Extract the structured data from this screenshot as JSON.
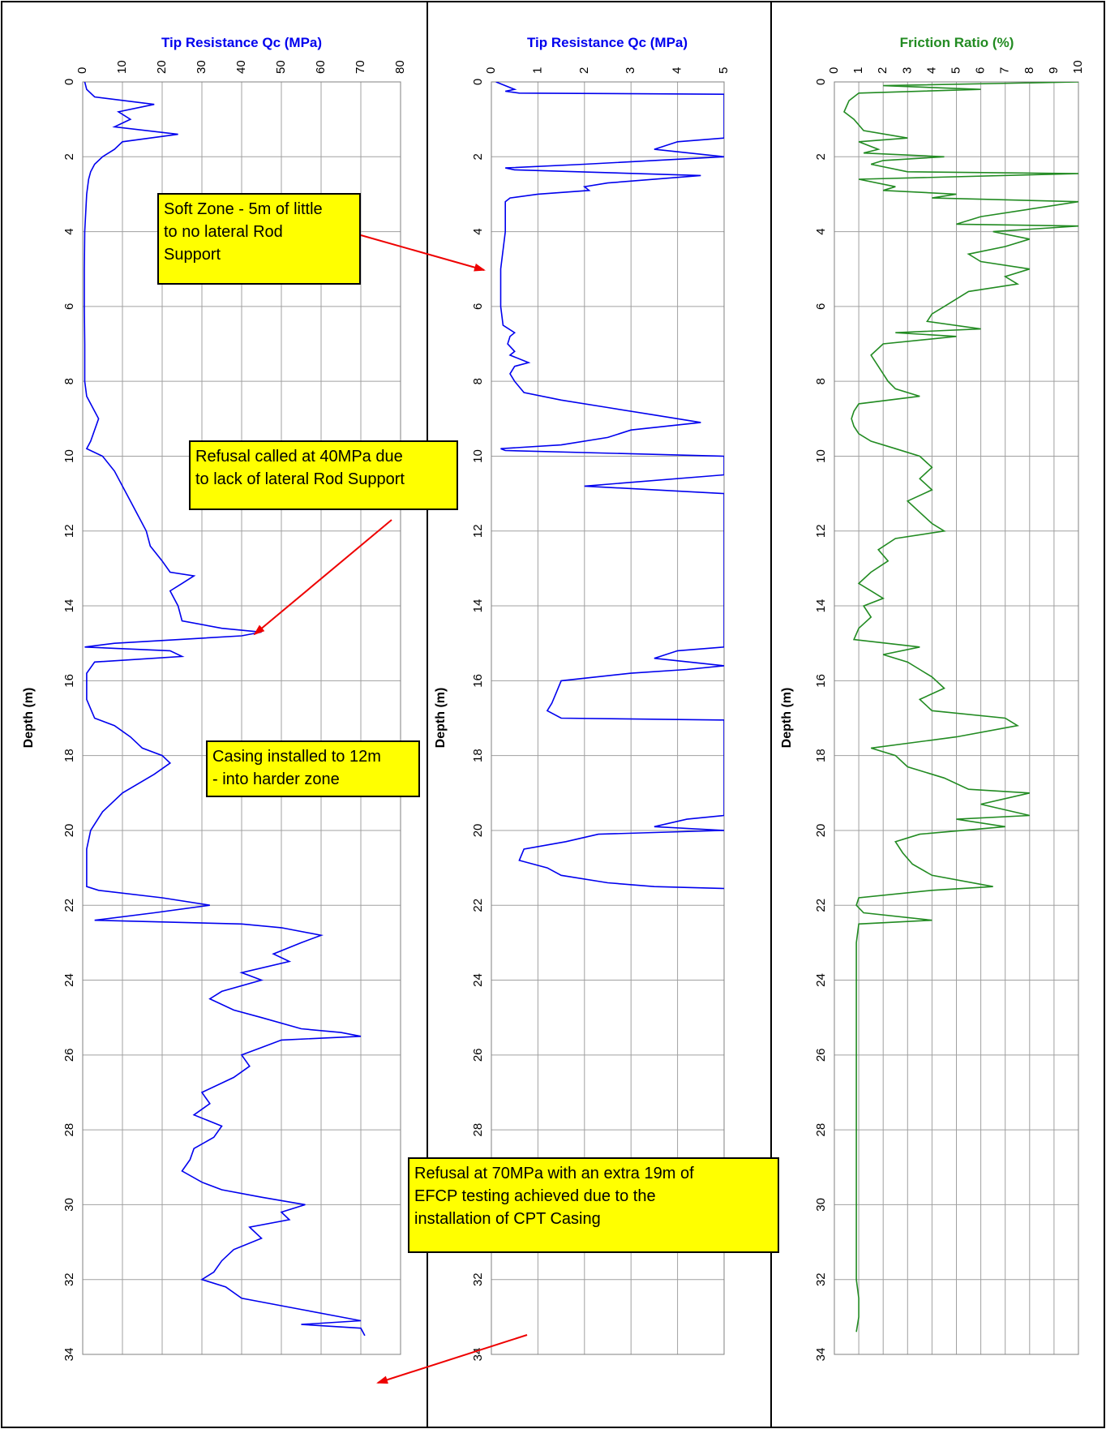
{
  "chart_data": [
    {
      "type": "line",
      "title": "Tip Resistance Qc (MPa)",
      "ylabel": "Depth (m)",
      "xlim": [
        0,
        80
      ],
      "ylim": [
        34,
        0
      ],
      "x_ticks": [
        0,
        10,
        20,
        30,
        40,
        50,
        60,
        70,
        80
      ],
      "y_ticks": [
        0,
        2,
        4,
        6,
        8,
        10,
        12,
        14,
        16,
        18,
        20,
        22,
        24,
        26,
        28,
        30,
        32,
        34
      ],
      "grid": true,
      "color": "#0000ee",
      "series": [
        {
          "depth": [
            0,
            0.2,
            0.4,
            0.6,
            0.8,
            1.0,
            1.2,
            1.4,
            1.6,
            1.8,
            2.0,
            2.2,
            2.4,
            2.6,
            3.0,
            4.0,
            5.0,
            6.0,
            7.0,
            8.0,
            8.4,
            9.0,
            9.6,
            9.8,
            10.0,
            10.4,
            10.8,
            11.2,
            11.6,
            12.0,
            12.4,
            12.8,
            13.1,
            13.2,
            13.4,
            13.6,
            14.0,
            14.4,
            14.6,
            14.7,
            14.8,
            15.0,
            15.1,
            15.2,
            15.35,
            15.5,
            15.8,
            16.5,
            17.0,
            17.2,
            17.5,
            17.8,
            18.0,
            18.2,
            18.5,
            19.0,
            19.5,
            20.0,
            20.5,
            21.0,
            21.5,
            21.6,
            21.8,
            22.0,
            22.2,
            22.4,
            22.5,
            22.6,
            22.8,
            23.0,
            23.3,
            23.5,
            23.8,
            24.0,
            24.3,
            24.5,
            24.8,
            25.0,
            25.3,
            25.4,
            25.5,
            25.6,
            25.8,
            26.0,
            26.3,
            26.6,
            27.0,
            27.3,
            27.6,
            27.9,
            28.2,
            28.5,
            28.8,
            29.1,
            29.4,
            29.6,
            29.8,
            30.0,
            30.2,
            30.4,
            30.6,
            30.9,
            31.2,
            31.5,
            31.8,
            32.0,
            32.2,
            32.5,
            32.8,
            33.0,
            33.1,
            33.2,
            33.3,
            33.5
          ],
          "qc": [
            0.5,
            1,
            3,
            18,
            9,
            12,
            8,
            24,
            10,
            8,
            5,
            3,
            2,
            1.5,
            1,
            0.5,
            0.4,
            0.4,
            0.5,
            0.5,
            1,
            4,
            2,
            1,
            5,
            8,
            10,
            12,
            14,
            16,
            17,
            20,
            22,
            28,
            25,
            22,
            24,
            25,
            35,
            45,
            40,
            8,
            0.5,
            22,
            25,
            3,
            1,
            1,
            3,
            8,
            12,
            15,
            20,
            22,
            18,
            10,
            5,
            2,
            1,
            1,
            1,
            4,
            20,
            32,
            18,
            3,
            40,
            50,
            60,
            55,
            48,
            52,
            40,
            45,
            35,
            32,
            38,
            45,
            55,
            65,
            70,
            50,
            45,
            40,
            42,
            38,
            30,
            32,
            28,
            35,
            33,
            28,
            27,
            25,
            30,
            35,
            45,
            56,
            50,
            52,
            42,
            45,
            38,
            35,
            33,
            30,
            36,
            40,
            55,
            65,
            70,
            55,
            70,
            71
          ]
        }
      ]
    },
    {
      "type": "line",
      "title": "Tip Resistance Qc (MPa)",
      "ylabel": "Depth (m)",
      "xlim": [
        0,
        5
      ],
      "ylim": [
        34,
        0
      ],
      "x_ticks": [
        0,
        1,
        2,
        3,
        4,
        5
      ],
      "y_ticks": [
        0,
        2,
        4,
        6,
        8,
        10,
        12,
        14,
        16,
        18,
        20,
        22,
        24,
        26,
        28,
        30,
        32,
        34
      ],
      "grid": true,
      "color": "#0000ee",
      "series": [
        {
          "depth": [
            0,
            0.1,
            0.2,
            0.25,
            0.3,
            0.33,
            0.35,
            1.5,
            1.6,
            1.8,
            2.0,
            2.2,
            2.3,
            2.35,
            2.5,
            2.7,
            2.8,
            2.9,
            3.0,
            3.1,
            3.2,
            4.0,
            5.0,
            6.0,
            6.5,
            6.7,
            6.8,
            7.0,
            7.2,
            7.3,
            7.5,
            7.6,
            7.8,
            8.0,
            8.3,
            8.5,
            8.7,
            8.9,
            9.1,
            9.3,
            9.5,
            9.7,
            9.8,
            9.85,
            10.0,
            10.05,
            10.5,
            10.8,
            11.0,
            11.4,
            15.1,
            15.2,
            15.4,
            15.6,
            15.7,
            15.8,
            16.0,
            16.3,
            16.6,
            16.8,
            17.0,
            17.05,
            17.2,
            19.6,
            19.7,
            19.9,
            20.0,
            20.1,
            20.3,
            20.5,
            20.8,
            21.0,
            21.2,
            21.4,
            21.5,
            21.55
          ],
          "qc": [
            0.1,
            0.3,
            0.5,
            0.3,
            0.6,
            5,
            5,
            5,
            4,
            3.5,
            5,
            2,
            0.3,
            0.5,
            4.5,
            2.5,
            2.0,
            2.1,
            1.0,
            0.4,
            0.3,
            0.3,
            0.2,
            0.2,
            0.25,
            0.5,
            0.4,
            0.35,
            0.5,
            0.4,
            0.8,
            0.5,
            0.4,
            0.5,
            0.7,
            1.5,
            2.5,
            3.5,
            4.5,
            3.0,
            2.5,
            1.5,
            0.2,
            0.3,
            5,
            5,
            5,
            2.0,
            5,
            5,
            5,
            4.0,
            3.5,
            5,
            4.2,
            3.0,
            1.5,
            1.4,
            1.3,
            1.2,
            1.5,
            5,
            5,
            5,
            4.2,
            3.5,
            5,
            2.3,
            1.6,
            0.7,
            0.6,
            1.2,
            1.5,
            2.5,
            3.5,
            5
          ]
        }
      ]
    },
    {
      "type": "line",
      "title": "Friction Ratio (%)",
      "ylabel": "Depth (m)",
      "xlim": [
        0,
        10
      ],
      "ylim": [
        34,
        0
      ],
      "x_ticks": [
        0,
        1,
        2,
        3,
        4,
        5,
        6,
        7,
        8,
        9,
        10
      ],
      "y_ticks": [
        0,
        2,
        4,
        6,
        8,
        10,
        12,
        14,
        16,
        18,
        20,
        22,
        24,
        26,
        28,
        30,
        32,
        34
      ],
      "grid": true,
      "color": "#228b22",
      "series": [
        {
          "depth": [
            0,
            0.1,
            0.2,
            0.3,
            0.5,
            0.8,
            1.0,
            1.3,
            1.5,
            1.6,
            1.8,
            1.9,
            2.0,
            2.1,
            2.2,
            2.4,
            2.45,
            2.6,
            2.8,
            2.9,
            3.0,
            3.1,
            3.2,
            3.4,
            3.6,
            3.8,
            3.85,
            4.0,
            4.2,
            4.4,
            4.6,
            4.8,
            5.0,
            5.2,
            5.4,
            5.6,
            5.8,
            6.0,
            6.2,
            6.4,
            6.6,
            6.7,
            6.8,
            7.0,
            7.3,
            7.6,
            7.8,
            8.0,
            8.2,
            8.4,
            8.6,
            8.8,
            9.0,
            9.2,
            9.4,
            9.6,
            9.8,
            10.0,
            10.3,
            10.6,
            10.9,
            11.2,
            11.5,
            11.8,
            12.0,
            12.2,
            12.5,
            12.8,
            13.1,
            13.4,
            13.6,
            13.8,
            14.0,
            14.3,
            14.6,
            14.9,
            15.1,
            15.3,
            15.5,
            15.7,
            15.9,
            16.2,
            16.5,
            16.8,
            17.0,
            17.2,
            17.5,
            17.8,
            18.0,
            18.3,
            18.6,
            18.9,
            19.0,
            19.3,
            19.6,
            19.7,
            19.9,
            20.1,
            20.3,
            20.6,
            20.9,
            21.2,
            21.5,
            21.6,
            21.8,
            22.0,
            22.2,
            22.4,
            22.5,
            23,
            24,
            25,
            26,
            27,
            28,
            29,
            30,
            31,
            32,
            32.5,
            33,
            33.4
          ],
          "fr": [
            10,
            2,
            6,
            1,
            0.6,
            0.4,
            0.8,
            1.2,
            3,
            1.0,
            1.8,
            1.2,
            4.5,
            2.0,
            1.5,
            3.0,
            10,
            1.0,
            2.5,
            2.0,
            5,
            4,
            10,
            8,
            6,
            5,
            10,
            6.5,
            8,
            7,
            5.5,
            6,
            8,
            7,
            7.5,
            5.5,
            5,
            4.5,
            4,
            3.8,
            6,
            2.5,
            5,
            2.0,
            1.5,
            1.8,
            2.0,
            2.2,
            2.5,
            3.5,
            1.0,
            0.8,
            0.7,
            0.8,
            1.0,
            1.5,
            2.5,
            3.5,
            4.0,
            3.5,
            4.0,
            3.0,
            3.5,
            4.0,
            4.5,
            2.5,
            1.8,
            2.2,
            1.5,
            1.0,
            1.5,
            2.0,
            1.2,
            1.5,
            1.0,
            0.8,
            3.5,
            2.0,
            3.0,
            3.5,
            4.0,
            4.5,
            3.5,
            4.0,
            7.0,
            7.5,
            5.0,
            1.5,
            2.5,
            3.0,
            4.5,
            5.5,
            8.0,
            6.0,
            8.0,
            5.0,
            7.0,
            3.5,
            2.5,
            2.8,
            3.2,
            4.0,
            6.5,
            4.0,
            1.0,
            0.9,
            1.2,
            4.0,
            1.0,
            0.9,
            0.9,
            0.9,
            0.9,
            0.9,
            0.9,
            0.9,
            0.9,
            0.9,
            0.9,
            1.0,
            1.0,
            0.9
          ]
        }
      ]
    }
  ],
  "annotations": {
    "soft_zone": [
      "Soft Zone - 5m of little",
      "to no lateral Rod",
      "Support"
    ],
    "refusal_40": [
      "Refusal called at 40MPa due",
      "to lack of lateral Rod Support"
    ],
    "casing": [
      "Casing installed to 12m",
      "- into harder zone"
    ],
    "refusal_70": [
      "Refusal at 70MPa with an extra 19m of",
      "EFCP testing achieved due to the",
      "installation of CPT Casing"
    ]
  },
  "colors": {
    "qc_line": "#0000ee",
    "fr_line": "#228b22",
    "qc_title": "#0000ee",
    "fr_title": "#228b22",
    "note_bg": "#ffff00",
    "arrow": "#ee0000"
  }
}
